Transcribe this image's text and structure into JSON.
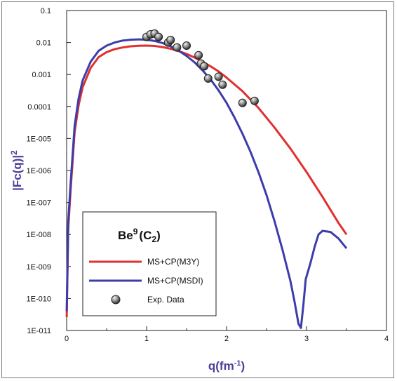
{
  "chart_data": {
    "type": "line",
    "title": "",
    "xlabel": "q(fm-1)",
    "ylabel": "|Fc(q)|2",
    "xlim": [
      0,
      4
    ],
    "ylim": [
      1e-11,
      0.1
    ],
    "y_scale": "log",
    "grid": false,
    "legend_position": "bottom-left",
    "x_ticks": [
      0,
      1,
      2,
      3,
      4
    ],
    "y_ticks": [
      {
        "value": 0.1,
        "label": "0.1"
      },
      {
        "value": 0.01,
        "label": "0.01"
      },
      {
        "value": 0.001,
        "label": "0.001"
      },
      {
        "value": 0.0001,
        "label": "0.0001"
      },
      {
        "value": 1e-05,
        "label": "1E-005"
      },
      {
        "value": 1e-06,
        "label": "1E-006"
      },
      {
        "value": 1e-07,
        "label": "1E-007"
      },
      {
        "value": 1e-08,
        "label": "1E-008"
      },
      {
        "value": 1e-09,
        "label": "1E-009"
      },
      {
        "value": 1e-10,
        "label": "1E-010"
      },
      {
        "value": 1e-11,
        "label": "1E-011"
      }
    ],
    "legend": {
      "title_main": "Be",
      "title_sup": "9",
      "title_paren_open": "(C",
      "title_sub": "2",
      "title_paren_close": ")"
    },
    "series": [
      {
        "name": "MS+CP(M3Y)",
        "kind": "line",
        "color": "#e03030",
        "x": [
          0.001,
          0.02,
          0.05,
          0.1,
          0.15,
          0.2,
          0.3,
          0.4,
          0.5,
          0.6,
          0.7,
          0.8,
          0.9,
          1.0,
          1.1,
          1.2,
          1.3,
          1.4,
          1.5,
          1.6,
          1.7,
          1.8,
          1.9,
          2.0,
          2.2,
          2.4,
          2.6,
          2.8,
          3.0,
          3.2,
          3.4,
          3.5
        ],
        "y": [
          2.6e-11,
          1.5e-08,
          2.5e-07,
          1.6e-05,
          0.00011,
          0.0004,
          0.0016,
          0.0035,
          0.005,
          0.0062,
          0.007,
          0.0076,
          0.0079,
          0.008,
          0.0078,
          0.0072,
          0.0064,
          0.0054,
          0.0044,
          0.0034,
          0.0025,
          0.0018,
          0.00125,
          0.0008,
          0.0003,
          9e-05,
          2.2e-05,
          4.8e-06,
          9e-07,
          1.5e-07,
          2.3e-08,
          1e-08
        ]
      },
      {
        "name": "MS+CP(MSDI)",
        "kind": "line",
        "color": "#3c3cab",
        "x": [
          0.001,
          0.02,
          0.05,
          0.1,
          0.15,
          0.2,
          0.3,
          0.4,
          0.5,
          0.6,
          0.7,
          0.8,
          0.9,
          1.0,
          1.1,
          1.2,
          1.3,
          1.4,
          1.5,
          1.6,
          1.7,
          1.8,
          1.9,
          2.0,
          2.1,
          2.2,
          2.3,
          2.4,
          2.5,
          2.6,
          2.7,
          2.8,
          2.85,
          2.9,
          2.93,
          2.96,
          2.99,
          3.05,
          3.1,
          3.15,
          3.2,
          3.3,
          3.4,
          3.5
        ],
        "y": [
          4e-11,
          2.5e-08,
          4e-07,
          2.5e-05,
          0.00018,
          0.00065,
          0.0025,
          0.0055,
          0.008,
          0.01,
          0.0115,
          0.0122,
          0.0125,
          0.0122,
          0.0112,
          0.0096,
          0.0076,
          0.0056,
          0.0038,
          0.0024,
          0.00135,
          0.0007,
          0.00032,
          0.00013,
          4.5e-05,
          1.4e-05,
          3.8e-06,
          8.8e-07,
          1.7e-07,
          2.6e-08,
          3.3e-09,
          3.4e-10,
          8e-11,
          1.6e-11,
          1.8e-12,
          6e-11,
          4e-10,
          1.3e-09,
          4e-09,
          1e-08,
          1.3e-08,
          1.2e-08,
          7.5e-09,
          3.7e-09
        ]
      },
      {
        "name": "Exp. Data",
        "kind": "scatter",
        "color": "#7a7a7a",
        "x": [
          1.0,
          1.05,
          1.1,
          1.15,
          1.27,
          1.3,
          1.38,
          1.5,
          1.65,
          1.68,
          1.72,
          1.77,
          1.9,
          1.95,
          2.2,
          2.35
        ],
        "y": [
          0.015,
          0.018,
          0.019,
          0.015,
          0.01,
          0.012,
          0.007,
          0.008,
          0.004,
          0.0022,
          0.0018,
          0.00075,
          0.00085,
          0.00048,
          0.00013,
          0.00015
        ]
      }
    ]
  }
}
